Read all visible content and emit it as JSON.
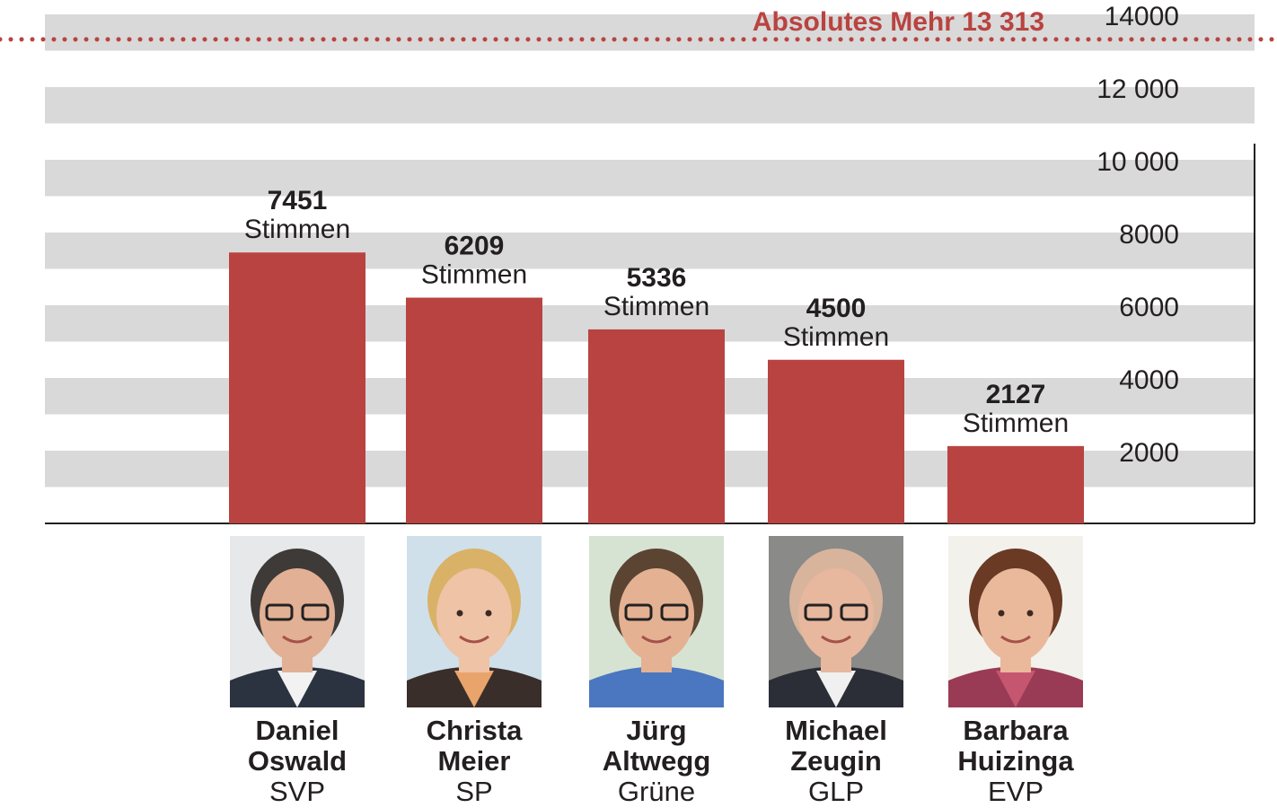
{
  "chart_data": {
    "type": "bar",
    "title": "",
    "xlabel": "",
    "ylabel": "",
    "ylim": [
      0,
      14000
    ],
    "yticks": [
      2000,
      4000,
      6000,
      8000,
      10000,
      12000,
      14000
    ],
    "ytick_labels": [
      "2000",
      "4000",
      "6000",
      "8000",
      "10 000",
      "12 000",
      "14000"
    ],
    "grid": "horizontal bands",
    "bar_color": "#b94340",
    "band_color": "#d9d9d9",
    "accent_color": "#b94340",
    "value_unit": "Stimmen",
    "reference_line": {
      "value": 13313,
      "label": "Absolutes Mehr 13 313"
    },
    "categories": [
      {
        "first": "Daniel",
        "last": "Oswald",
        "party": "SVP",
        "photo": "portrait-man-glasses"
      },
      {
        "first": "Christa",
        "last": "Meier",
        "party": "SP",
        "photo": "portrait-woman-blonde"
      },
      {
        "first": "Jürg",
        "last": "Altwegg",
        "party": "Grüne",
        "photo": "portrait-man-glasses-tie"
      },
      {
        "first": "Michael",
        "last": "Zeugin",
        "party": "GLP",
        "photo": "portrait-man-bald-glasses"
      },
      {
        "first": "Barbara",
        "last": "Huizinga",
        "party": "EVP",
        "photo": "portrait-woman-brunette"
      }
    ],
    "values": [
      7451,
      6209,
      5336,
      4500,
      2127
    ]
  }
}
